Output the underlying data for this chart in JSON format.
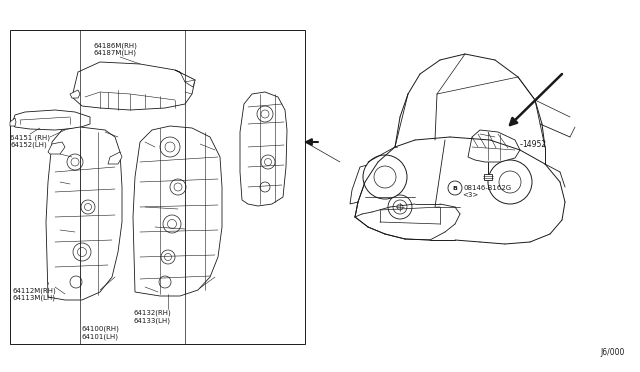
{
  "bg_color": "#ffffff",
  "line_color": "#1a1a1a",
  "fig_width": 6.4,
  "fig_height": 3.72,
  "dpi": 100,
  "diagram_code": "J6/000",
  "label_64186": "64186M(RH)\n64187M(LH)",
  "label_64151": "64151 (RH)\n64152(LH)",
  "label_64112": "64112M(RH)\n64113M(LH)",
  "label_64132": "64132(RH)\n64133(LH)",
  "label_64100": "64100(RH)\n64101(LH)",
  "label_14952": "14952",
  "label_bolt": "08146-B162G",
  "label_bolt2": "<3>",
  "font_size": 5.0,
  "lw_main": 0.65,
  "lw_detail": 0.4
}
